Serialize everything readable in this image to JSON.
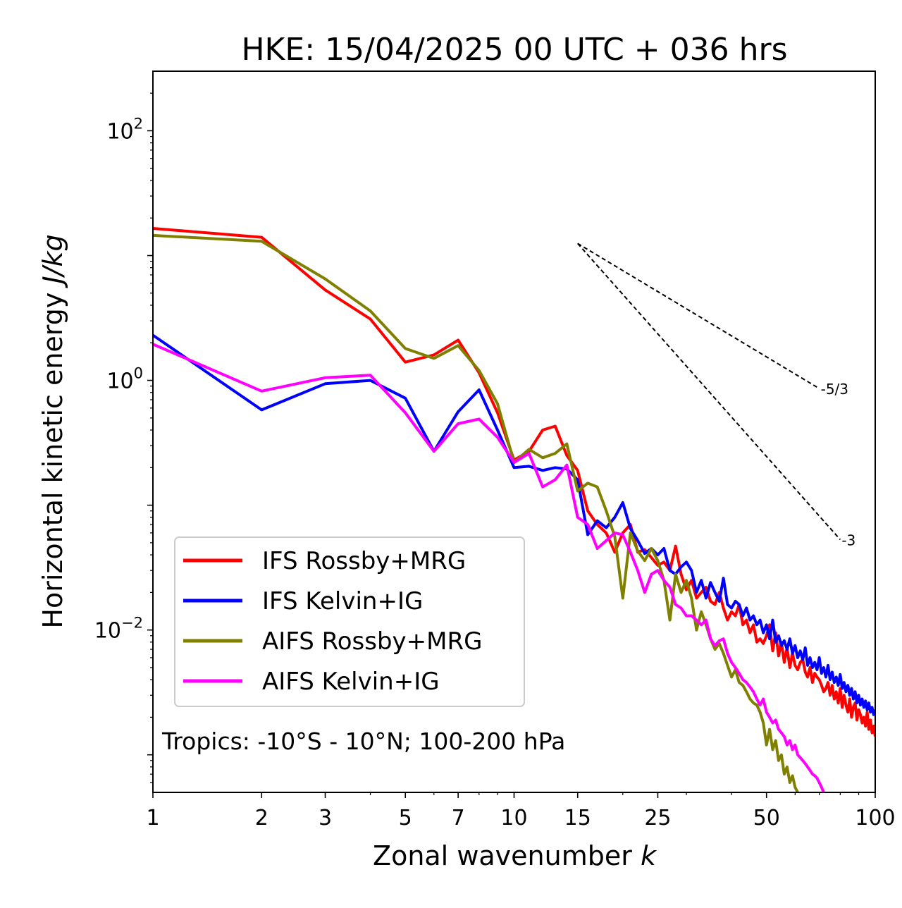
{
  "chart_data": {
    "type": "line",
    "title": "HKE: 15/04/2025 00 UTC + 036 hrs",
    "xlabel": "Zonal wavenumber",
    "xlabel_var": "k",
    "ylabel": "Horizontal kinetic energy",
    "ylabel_units": "J/kg",
    "xscale": "log",
    "yscale": "log",
    "xlim": [
      1,
      100
    ],
    "ylim": [
      0.0005,
      300
    ],
    "xticks": [
      1,
      2,
      3,
      5,
      7,
      10,
      15,
      25,
      50,
      100
    ],
    "xtick_labels": [
      "1",
      "2",
      "3",
      "5",
      "7",
      "10",
      "15",
      "25",
      "50",
      "100"
    ],
    "yticks": [
      {
        "value": 100,
        "base": "10",
        "exp": "2"
      },
      {
        "value": 1,
        "base": "10",
        "exp": "0"
      },
      {
        "value": 0.01,
        "base": "10",
        "exp": "−2"
      }
    ],
    "grid": false,
    "legend_position": "lower-left",
    "annotation": "Tropics: -10°S - 10°N; 100-200 hPa",
    "reference_lines": [
      {
        "label": "-5/3",
        "x0": 15,
        "y0": 12.5,
        "x1": 70,
        "y1": 0.86
      },
      {
        "label": "-3",
        "x0": 15,
        "y0": 12.5,
        "x1": 80,
        "y1": 0.053
      }
    ],
    "series": [
      {
        "name": "IFS Rossby+MRG",
        "color": "#ff0000",
        "x": [
          1,
          2,
          3,
          4,
          5,
          6,
          7,
          8,
          9,
          10,
          11,
          12,
          13,
          14,
          15,
          16,
          17,
          18,
          19,
          20,
          21,
          22,
          23,
          24,
          25,
          26,
          27,
          28,
          29,
          30,
          31,
          32,
          33,
          34,
          35,
          36,
          37,
          38,
          39,
          40,
          41,
          42,
          43,
          44,
          45,
          46,
          47,
          48,
          49,
          50,
          51,
          52,
          53,
          54,
          55,
          56,
          57,
          58,
          59,
          60,
          61,
          62,
          63,
          64,
          65,
          66,
          67,
          68,
          69,
          70,
          71,
          72,
          73,
          74,
          75,
          76,
          77,
          78,
          79,
          80,
          81,
          82,
          83,
          84,
          85,
          86,
          87,
          88,
          89,
          90,
          91,
          92,
          93,
          94,
          95,
          96,
          97,
          98,
          99,
          100
        ],
        "y": [
          16.5,
          14,
          5.3,
          3.1,
          1.4,
          1.6,
          2.1,
          1.15,
          0.55,
          0.23,
          0.27,
          0.4,
          0.43,
          0.25,
          0.19,
          0.09,
          0.07,
          0.06,
          0.042,
          0.06,
          0.07,
          0.042,
          0.044,
          0.038,
          0.033,
          0.035,
          0.03,
          0.047,
          0.028,
          0.021,
          0.025,
          0.018,
          0.02,
          0.022,
          0.017,
          0.016,
          0.02,
          0.015,
          0.012,
          0.014,
          0.013,
          0.016,
          0.011,
          0.012,
          0.0095,
          0.011,
          0.008,
          0.0085,
          0.0078,
          0.009,
          0.011,
          0.0068,
          0.0095,
          0.0062,
          0.008,
          0.0055,
          0.0072,
          0.005,
          0.0065,
          0.0052,
          0.0048,
          0.0055,
          0.0058,
          0.0046,
          0.0042,
          0.005,
          0.0038,
          0.0045,
          0.0042,
          0.004,
          0.0036,
          0.0032,
          0.0034,
          0.0038,
          0.003,
          0.0036,
          0.0028,
          0.0032,
          0.0026,
          0.0034,
          0.0024,
          0.003,
          0.0025,
          0.0022,
          0.0028,
          0.002,
          0.0024,
          0.0026,
          0.0019,
          0.0023,
          0.0021,
          0.0018,
          0.002,
          0.0017,
          0.0022,
          0.0016,
          0.0019,
          0.0015,
          0.0017,
          0.0014
        ]
      },
      {
        "name": "IFS Kelvin+IG",
        "color": "#0000ff",
        "x": [
          1,
          2,
          3,
          4,
          5,
          6,
          7,
          8,
          9,
          10,
          11,
          12,
          13,
          14,
          15,
          16,
          17,
          18,
          19,
          20,
          21,
          22,
          23,
          24,
          25,
          26,
          27,
          28,
          29,
          30,
          31,
          32,
          33,
          34,
          35,
          36,
          37,
          38,
          39,
          40,
          41,
          42,
          43,
          44,
          45,
          46,
          47,
          48,
          49,
          50,
          51,
          52,
          53,
          54,
          55,
          56,
          57,
          58,
          59,
          60,
          61,
          62,
          63,
          64,
          65,
          66,
          67,
          68,
          69,
          70,
          71,
          72,
          73,
          74,
          75,
          76,
          77,
          78,
          79,
          80,
          81,
          82,
          83,
          84,
          85,
          86,
          87,
          88,
          89,
          90,
          91,
          92,
          93,
          94,
          95,
          96,
          97,
          98,
          99,
          100
        ],
        "y": [
          2.3,
          0.58,
          0.94,
          1.0,
          0.72,
          0.27,
          0.56,
          0.84,
          0.4,
          0.2,
          0.205,
          0.19,
          0.2,
          0.195,
          0.16,
          0.058,
          0.075,
          0.066,
          0.08,
          0.105,
          0.065,
          0.052,
          0.041,
          0.045,
          0.04,
          0.045,
          0.03,
          0.028,
          0.032,
          0.035,
          0.03,
          0.02,
          0.025,
          0.018,
          0.024,
          0.02,
          0.017,
          0.026,
          0.016,
          0.015,
          0.017,
          0.016,
          0.013,
          0.015,
          0.012,
          0.013,
          0.011,
          0.012,
          0.0095,
          0.011,
          0.0085,
          0.012,
          0.008,
          0.009,
          0.0075,
          0.0082,
          0.007,
          0.0085,
          0.0065,
          0.0075,
          0.006,
          0.0068,
          0.0058,
          0.0072,
          0.0052,
          0.006,
          0.005,
          0.0055,
          0.0048,
          0.006,
          0.0045,
          0.005,
          0.0042,
          0.0052,
          0.004,
          0.0046,
          0.0038,
          0.0042,
          0.0036,
          0.0044,
          0.0034,
          0.0038,
          0.0032,
          0.0036,
          0.003,
          0.0034,
          0.0028,
          0.0032,
          0.0026,
          0.003,
          0.0025,
          0.0028,
          0.0024,
          0.0027,
          0.0023,
          0.0026,
          0.0022,
          0.0024,
          0.0021,
          0.0023
        ]
      },
      {
        "name": "AIFS Rossby+MRG",
        "color": "#808000",
        "x": [
          1,
          2,
          3,
          4,
          5,
          6,
          7,
          8,
          9,
          10,
          11,
          12,
          13,
          14,
          15,
          16,
          17,
          18,
          19,
          20,
          21,
          22,
          23,
          24,
          25,
          26,
          27,
          28,
          29,
          30,
          31,
          32,
          33,
          34,
          35,
          36,
          37,
          38,
          39,
          40,
          41,
          42,
          43,
          44,
          45,
          46,
          47,
          48,
          49,
          50,
          51,
          52,
          53,
          54,
          55,
          56,
          57,
          58,
          59,
          60,
          61,
          62,
          63,
          64,
          65
        ],
        "y": [
          14.5,
          13.0,
          6.5,
          3.6,
          1.8,
          1.5,
          1.9,
          1.2,
          0.65,
          0.22,
          0.28,
          0.24,
          0.26,
          0.31,
          0.13,
          0.15,
          0.14,
          0.09,
          0.056,
          0.018,
          0.06,
          0.043,
          0.036,
          0.045,
          0.036,
          0.025,
          0.012,
          0.028,
          0.02,
          0.025,
          0.018,
          0.01,
          0.014,
          0.011,
          0.0085,
          0.007,
          0.0078,
          0.0065,
          0.0052,
          0.0042,
          0.0048,
          0.0038,
          0.0036,
          0.0032,
          0.0028,
          0.0026,
          0.0025,
          0.0022,
          0.0018,
          0.0012,
          0.0016,
          0.0011,
          0.0013,
          0.0009,
          0.001,
          0.0007,
          0.0008,
          0.0006,
          0.00068,
          0.00055,
          0.0005,
          0.00045,
          0.0004,
          0.00038,
          0.00035
        ]
      },
      {
        "name": "AIFS Kelvin+IG",
        "color": "#ff00ff",
        "x": [
          1,
          2,
          3,
          4,
          5,
          6,
          7,
          8,
          9,
          10,
          11,
          12,
          13,
          14,
          15,
          16,
          17,
          18,
          19,
          20,
          21,
          22,
          23,
          24,
          25,
          26,
          27,
          28,
          29,
          30,
          31,
          32,
          33,
          34,
          35,
          36,
          37,
          38,
          39,
          40,
          41,
          42,
          43,
          44,
          45,
          46,
          47,
          48,
          49,
          50,
          51,
          52,
          53,
          54,
          55,
          56,
          57,
          58,
          59,
          60,
          61,
          62,
          63,
          64,
          65,
          66,
          67,
          68,
          69,
          70,
          71,
          72
        ],
        "y": [
          1.95,
          0.82,
          1.05,
          1.1,
          0.55,
          0.27,
          0.45,
          0.49,
          0.35,
          0.22,
          0.26,
          0.14,
          0.16,
          0.21,
          0.08,
          0.07,
          0.045,
          0.052,
          0.06,
          0.058,
          0.042,
          0.03,
          0.02,
          0.028,
          0.03,
          0.025,
          0.022,
          0.016,
          0.015,
          0.013,
          0.013,
          0.012,
          0.011,
          0.012,
          0.0085,
          0.0075,
          0.0082,
          0.0085,
          0.0065,
          0.0055,
          0.005,
          0.0045,
          0.004,
          0.0038,
          0.0035,
          0.0032,
          0.0028,
          0.0025,
          0.0028,
          0.0022,
          0.002,
          0.0018,
          0.0019,
          0.0016,
          0.0015,
          0.0014,
          0.0012,
          0.0013,
          0.0011,
          0.0012,
          0.001,
          0.00095,
          0.0009,
          0.00085,
          0.0008,
          0.00075,
          0.0007,
          0.00068,
          0.00065,
          0.0006,
          0.00055,
          0.0005
        ]
      }
    ]
  }
}
